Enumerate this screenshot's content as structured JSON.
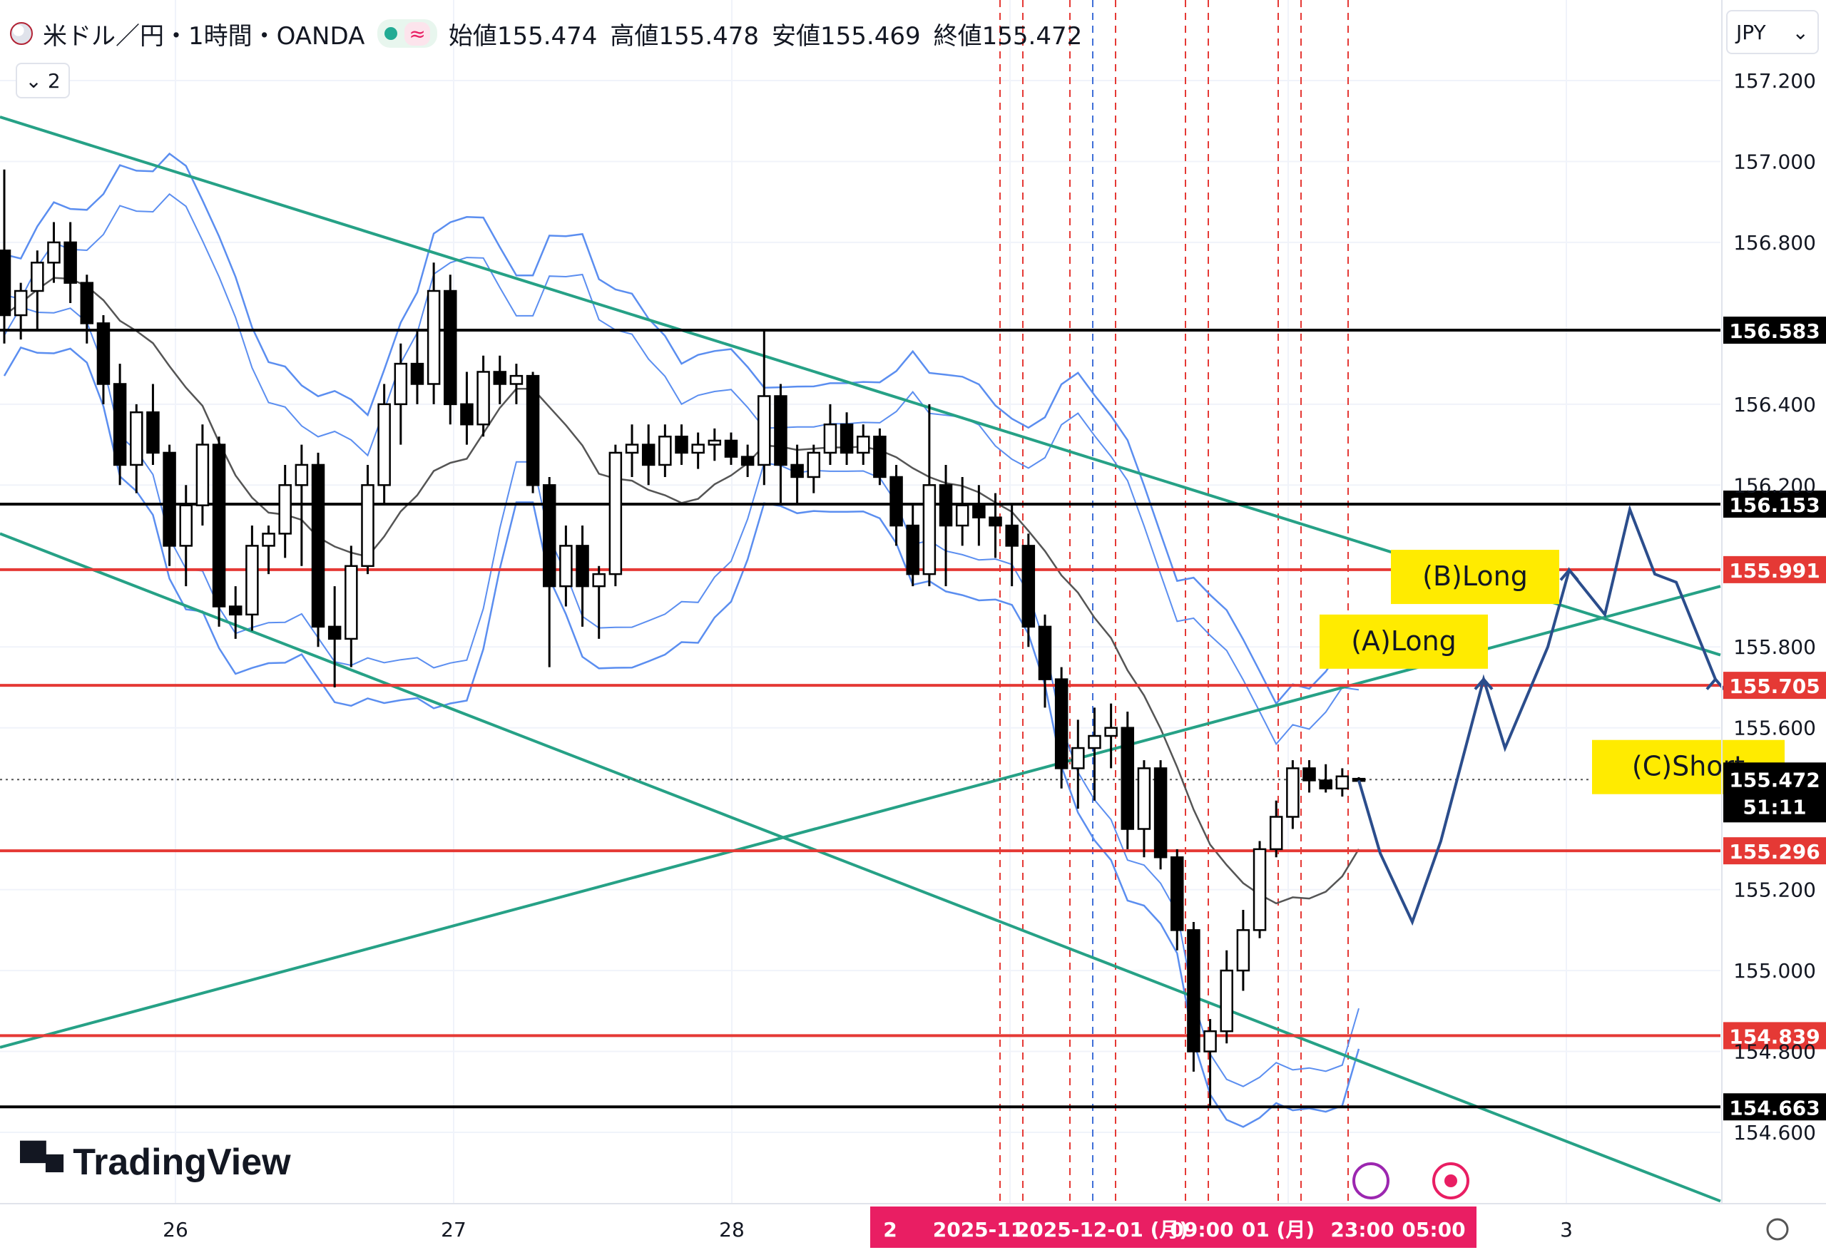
{
  "header": {
    "symbol": "米ドル／円・1時間・OANDA",
    "open_label": "始値",
    "open_value": "155.474",
    "high_label": "高値",
    "high_value": "155.478",
    "low_label": "安値",
    "low_value": "155.469",
    "close_label": "終値",
    "close_value": "155.472",
    "indicator_toggle": "≈",
    "legend_count": "2"
  },
  "currency_selector": "JPY",
  "branding": "TradingView",
  "chart_data": {
    "type": "candlestick",
    "ylim": [
      154.4,
      157.3
    ],
    "price_ticks": [
      "157.200",
      "157.000",
      "156.800",
      "156.400",
      "156.200",
      "155.800",
      "155.600",
      "155.200",
      "155.000",
      "154.800",
      "154.600"
    ],
    "x_ticks": [
      "26",
      "27",
      "28",
      "3"
    ],
    "time_badge": [
      "2",
      "2025-11",
      "2025-12-01 (月)",
      "09:00",
      "01 (月)",
      "23:00",
      "05:00"
    ],
    "horizontal_levels": [
      {
        "price": 156.583,
        "label": "156.583",
        "color": "#000000"
      },
      {
        "price": 156.153,
        "label": "156.153",
        "color": "#000000"
      },
      {
        "price": 155.991,
        "label": "155.991",
        "color": "#e53935"
      },
      {
        "price": 155.705,
        "label": "155.705",
        "color": "#e53935"
      },
      {
        "price": 155.296,
        "label": "155.296",
        "color": "#e53935"
      },
      {
        "price": 154.839,
        "label": "154.839",
        "color": "#e53935"
      },
      {
        "price": 154.663,
        "label": "154.663",
        "color": "#000000"
      }
    ],
    "last_price": {
      "label": "155.472",
      "countdown": "51:11"
    },
    "annotations": [
      "(A)Long",
      "(B)Long",
      "(C)Short"
    ],
    "trendline_color": "#26a186",
    "band_color": "#5b8ef0",
    "ma_color": "#555555",
    "projection_color": "#2b4d8c",
    "vertical_dashed_red": "#e53935",
    "vertical_dashed_blue": "#3f6fd8",
    "candles": [
      {
        "o": 156.78,
        "h": 156.98,
        "l": 156.55,
        "c": 156.62
      },
      {
        "o": 156.62,
        "h": 156.7,
        "l": 156.56,
        "c": 156.68
      },
      {
        "o": 156.68,
        "h": 156.78,
        "l": 156.58,
        "c": 156.75
      },
      {
        "o": 156.75,
        "h": 156.85,
        "l": 156.7,
        "c": 156.8
      },
      {
        "o": 156.8,
        "h": 156.85,
        "l": 156.65,
        "c": 156.7
      },
      {
        "o": 156.7,
        "h": 156.72,
        "l": 156.55,
        "c": 156.6
      },
      {
        "o": 156.6,
        "h": 156.62,
        "l": 156.4,
        "c": 156.45
      },
      {
        "o": 156.45,
        "h": 156.5,
        "l": 156.2,
        "c": 156.25
      },
      {
        "o": 156.25,
        "h": 156.4,
        "l": 156.18,
        "c": 156.38
      },
      {
        "o": 156.38,
        "h": 156.45,
        "l": 156.25,
        "c": 156.28
      },
      {
        "o": 156.28,
        "h": 156.3,
        "l": 156.0,
        "c": 156.05
      },
      {
        "o": 156.05,
        "h": 156.2,
        "l": 155.95,
        "c": 156.15
      },
      {
        "o": 156.15,
        "h": 156.35,
        "l": 156.1,
        "c": 156.3
      },
      {
        "o": 156.3,
        "h": 156.32,
        "l": 155.85,
        "c": 155.9
      },
      {
        "o": 155.9,
        "h": 155.95,
        "l": 155.82,
        "c": 155.88
      },
      {
        "o": 155.88,
        "h": 156.1,
        "l": 155.84,
        "c": 156.05
      },
      {
        "o": 156.05,
        "h": 156.1,
        "l": 155.98,
        "c": 156.08
      },
      {
        "o": 156.08,
        "h": 156.25,
        "l": 156.02,
        "c": 156.2
      },
      {
        "o": 156.2,
        "h": 156.3,
        "l": 156.0,
        "c": 156.25
      },
      {
        "o": 156.25,
        "h": 156.28,
        "l": 155.8,
        "c": 155.85
      },
      {
        "o": 155.85,
        "h": 155.95,
        "l": 155.7,
        "c": 155.82
      },
      {
        "o": 155.82,
        "h": 156.05,
        "l": 155.75,
        "c": 156.0
      },
      {
        "o": 156.0,
        "h": 156.25,
        "l": 155.98,
        "c": 156.2
      },
      {
        "o": 156.2,
        "h": 156.45,
        "l": 156.15,
        "c": 156.4
      },
      {
        "o": 156.4,
        "h": 156.55,
        "l": 156.3,
        "c": 156.5
      },
      {
        "o": 156.5,
        "h": 156.58,
        "l": 156.4,
        "c": 156.45
      },
      {
        "o": 156.45,
        "h": 156.75,
        "l": 156.4,
        "c": 156.68
      },
      {
        "o": 156.68,
        "h": 156.72,
        "l": 156.35,
        "c": 156.4
      },
      {
        "o": 156.4,
        "h": 156.48,
        "l": 156.3,
        "c": 156.35
      },
      {
        "o": 156.35,
        "h": 156.52,
        "l": 156.32,
        "c": 156.48
      },
      {
        "o": 156.48,
        "h": 156.52,
        "l": 156.4,
        "c": 156.45
      },
      {
        "o": 156.45,
        "h": 156.5,
        "l": 156.4,
        "c": 156.47
      },
      {
        "o": 156.47,
        "h": 156.48,
        "l": 156.18,
        "c": 156.2
      },
      {
        "o": 156.2,
        "h": 156.22,
        "l": 155.75,
        "c": 155.95
      },
      {
        "o": 155.95,
        "h": 156.1,
        "l": 155.9,
        "c": 156.05
      },
      {
        "o": 156.05,
        "h": 156.1,
        "l": 155.85,
        "c": 155.95
      },
      {
        "o": 155.95,
        "h": 156.0,
        "l": 155.82,
        "c": 155.98
      },
      {
        "o": 155.98,
        "h": 156.3,
        "l": 155.95,
        "c": 156.28
      },
      {
        "o": 156.28,
        "h": 156.35,
        "l": 156.22,
        "c": 156.3
      },
      {
        "o": 156.3,
        "h": 156.35,
        "l": 156.2,
        "c": 156.25
      },
      {
        "o": 156.25,
        "h": 156.35,
        "l": 156.22,
        "c": 156.32
      },
      {
        "o": 156.32,
        "h": 156.35,
        "l": 156.25,
        "c": 156.28
      },
      {
        "o": 156.28,
        "h": 156.33,
        "l": 156.24,
        "c": 156.3
      },
      {
        "o": 156.3,
        "h": 156.34,
        "l": 156.26,
        "c": 156.31
      },
      {
        "o": 156.31,
        "h": 156.33,
        "l": 156.25,
        "c": 156.27
      },
      {
        "o": 156.27,
        "h": 156.3,
        "l": 156.22,
        "c": 156.25
      },
      {
        "o": 156.25,
        "h": 156.58,
        "l": 156.2,
        "c": 156.42
      },
      {
        "o": 156.42,
        "h": 156.45,
        "l": 156.15,
        "c": 156.25
      },
      {
        "o": 156.25,
        "h": 156.3,
        "l": 156.15,
        "c": 156.22
      },
      {
        "o": 156.22,
        "h": 156.3,
        "l": 156.18,
        "c": 156.28
      },
      {
        "o": 156.28,
        "h": 156.4,
        "l": 156.25,
        "c": 156.35
      },
      {
        "o": 156.35,
        "h": 156.38,
        "l": 156.25,
        "c": 156.28
      },
      {
        "o": 156.28,
        "h": 156.35,
        "l": 156.25,
        "c": 156.32
      },
      {
        "o": 156.32,
        "h": 156.34,
        "l": 156.2,
        "c": 156.22
      },
      {
        "o": 156.22,
        "h": 156.25,
        "l": 156.05,
        "c": 156.1
      },
      {
        "o": 156.1,
        "h": 156.15,
        "l": 155.95,
        "c": 155.98
      },
      {
        "o": 155.98,
        "h": 156.4,
        "l": 155.95,
        "c": 156.2
      },
      {
        "o": 156.2,
        "h": 156.25,
        "l": 155.95,
        "c": 156.1
      },
      {
        "o": 156.1,
        "h": 156.22,
        "l": 156.05,
        "c": 156.15
      },
      {
        "o": 156.15,
        "h": 156.2,
        "l": 156.05,
        "c": 156.12
      },
      {
        "o": 156.12,
        "h": 156.18,
        "l": 156.02,
        "c": 156.1
      },
      {
        "o": 156.1,
        "h": 156.15,
        "l": 155.95,
        "c": 156.05
      },
      {
        "o": 156.05,
        "h": 156.08,
        "l": 155.8,
        "c": 155.85
      },
      {
        "o": 155.85,
        "h": 155.88,
        "l": 155.65,
        "c": 155.72
      },
      {
        "o": 155.72,
        "h": 155.75,
        "l": 155.45,
        "c": 155.5
      },
      {
        "o": 155.5,
        "h": 155.62,
        "l": 155.4,
        "c": 155.55
      },
      {
        "o": 155.55,
        "h": 155.65,
        "l": 155.42,
        "c": 155.58
      },
      {
        "o": 155.58,
        "h": 155.66,
        "l": 155.5,
        "c": 155.6
      },
      {
        "o": 155.6,
        "h": 155.64,
        "l": 155.3,
        "c": 155.35
      },
      {
        "o": 155.35,
        "h": 155.52,
        "l": 155.28,
        "c": 155.5
      },
      {
        "o": 155.5,
        "h": 155.52,
        "l": 155.25,
        "c": 155.28
      },
      {
        "o": 155.28,
        "h": 155.3,
        "l": 155.05,
        "c": 155.1
      },
      {
        "o": 155.1,
        "h": 155.12,
        "l": 154.75,
        "c": 154.8
      },
      {
        "o": 154.8,
        "h": 154.88,
        "l": 154.66,
        "c": 154.85
      },
      {
        "o": 154.85,
        "h": 155.05,
        "l": 154.82,
        "c": 155.0
      },
      {
        "o": 155.0,
        "h": 155.15,
        "l": 154.95,
        "c": 155.1
      },
      {
        "o": 155.1,
        "h": 155.32,
        "l": 155.08,
        "c": 155.3
      },
      {
        "o": 155.3,
        "h": 155.42,
        "l": 155.28,
        "c": 155.38
      },
      {
        "o": 155.38,
        "h": 155.52,
        "l": 155.35,
        "c": 155.5
      },
      {
        "o": 155.5,
        "h": 155.52,
        "l": 155.44,
        "c": 155.47
      },
      {
        "o": 155.47,
        "h": 155.51,
        "l": 155.44,
        "c": 155.45
      },
      {
        "o": 155.45,
        "h": 155.5,
        "l": 155.43,
        "c": 155.48
      },
      {
        "o": 155.474,
        "h": 155.478,
        "l": 155.469,
        "c": 155.472
      }
    ]
  }
}
